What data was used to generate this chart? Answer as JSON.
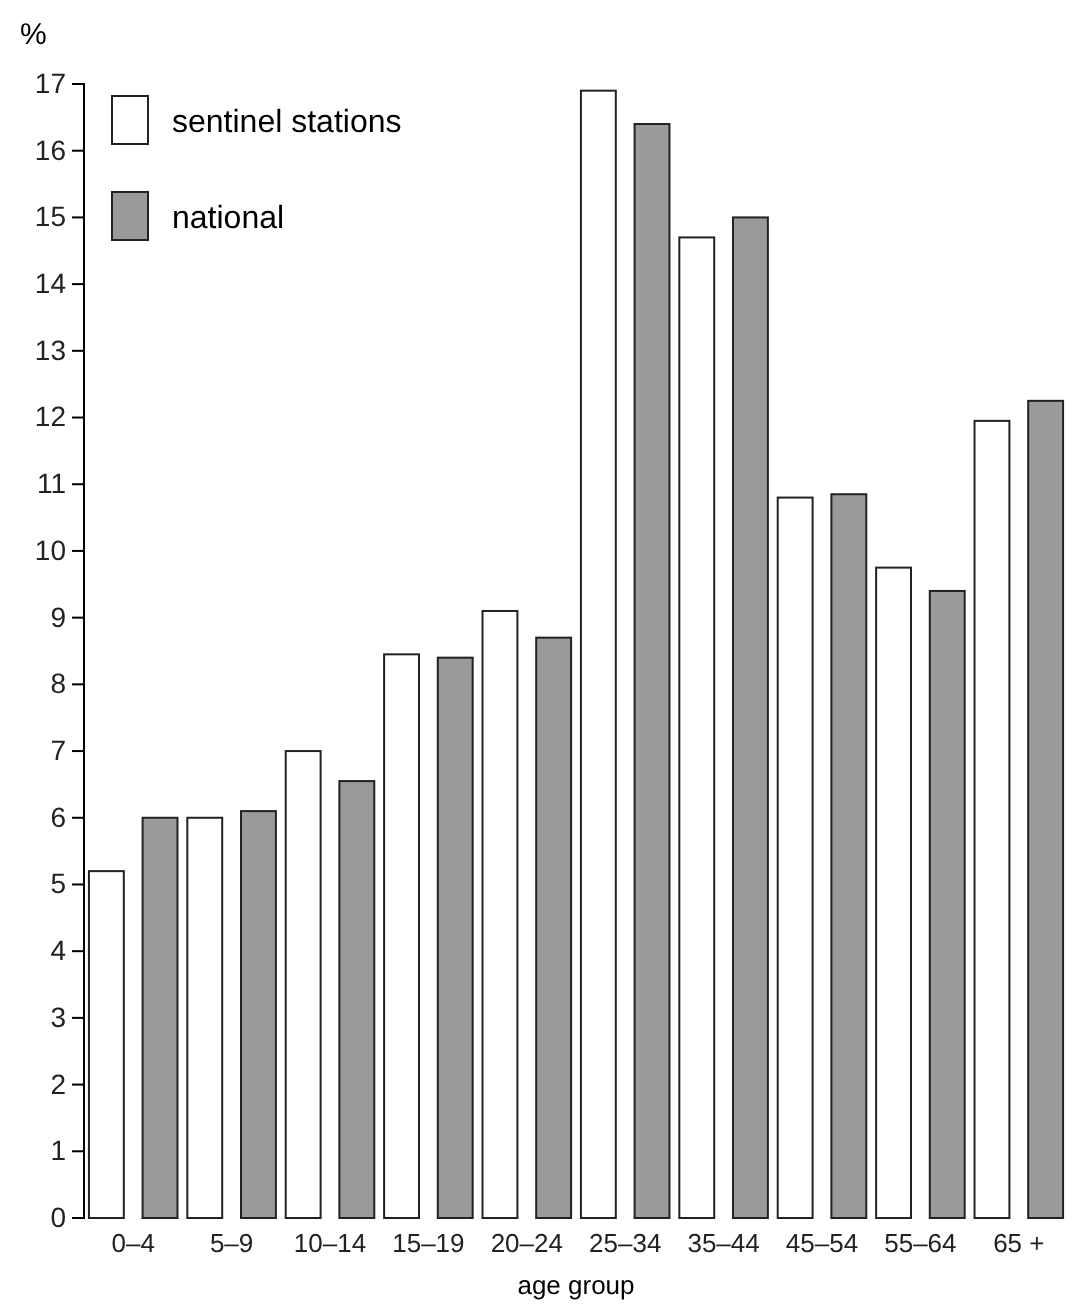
{
  "chart_data": {
    "type": "bar",
    "ylabel": "%",
    "xlabel": "age group",
    "categories": [
      "0–4",
      "5–9",
      "10–14",
      "15–19",
      "20–24",
      "25–34",
      "35–44",
      "45–54",
      "55–64",
      "65 +"
    ],
    "series": [
      {
        "name": "sentinel stations",
        "color": "#ffffff",
        "values": [
          5.2,
          6.0,
          7.0,
          8.45,
          9.1,
          16.9,
          14.7,
          10.8,
          9.75,
          11.95
        ]
      },
      {
        "name": "national",
        "color": "#9a9a9a",
        "values": [
          6.0,
          6.1,
          6.55,
          8.4,
          8.7,
          16.4,
          15.0,
          10.85,
          9.4,
          12.25
        ]
      }
    ],
    "ylim": [
      0,
      17
    ],
    "yticks": [
      0,
      1,
      2,
      3,
      4,
      5,
      6,
      7,
      8,
      9,
      10,
      11,
      12,
      13,
      14,
      15,
      16,
      17
    ],
    "grid": false,
    "legend": "top left"
  }
}
